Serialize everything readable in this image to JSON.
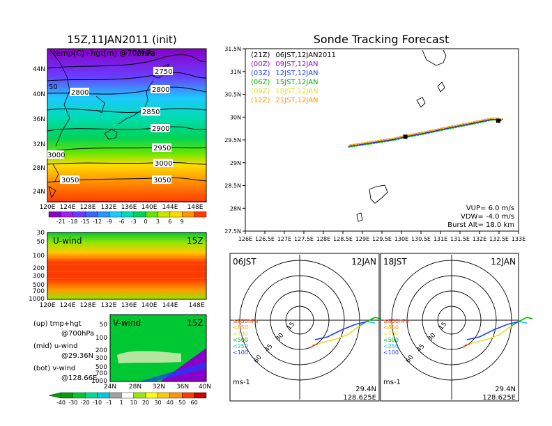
{
  "left_title": "15Z,11JAN2011 (init)",
  "right_title": "Sonde Tracking Forecast",
  "map_left": {
    "label": "temp(C)+hgt(m) @700hPa",
    "lon_ticks": [
      "120E",
      "124E",
      "128E",
      "132E",
      "136E",
      "140E",
      "144E",
      "148E"
    ],
    "lat_ticks": [
      "24N",
      "28N",
      "32N",
      "36N",
      "40N",
      "44N"
    ],
    "contour_labels": [
      "2750",
      "2800",
      "2800",
      "2850",
      "2900",
      "2950",
      "3000",
      "3000",
      "3050",
      "3050",
      "2700",
      "50"
    ],
    "colorbar_ticks": [
      "-21",
      "-18",
      "-15",
      "-12",
      "-9",
      "-6",
      "-3",
      "0",
      "3",
      "6",
      "9"
    ],
    "colorbar_colors": [
      "#8a00c8",
      "#a020f0",
      "#6a3cff",
      "#3c64ff",
      "#2a96ff",
      "#1ec8ff",
      "#00dcb4",
      "#00d25a",
      "#64e600",
      "#c8e600",
      "#ffdc00",
      "#ff9600",
      "#ff3c00"
    ]
  },
  "uwind": {
    "label": "U-wind",
    "time": "15Z",
    "levels": [
      "30",
      "50",
      "100",
      "200",
      "300",
      "500",
      "700",
      "1000"
    ],
    "lon_ticks": [
      "120E",
      "124E",
      "128E",
      "132E",
      "136E",
      "140E",
      "144E",
      "148E"
    ]
  },
  "vwind": {
    "label": "V-wind",
    "time": "15Z",
    "levels": [
      "50",
      "100",
      "200",
      "300",
      "500",
      "700",
      "1000"
    ],
    "lat_ticks": [
      "24N",
      "28N",
      "32N",
      "36N",
      "40N"
    ]
  },
  "side_notes": [
    {
      "line1": "(up) tmp+hgt",
      "line2": "@700hPa"
    },
    {
      "line1": "(mid) u-wind",
      "line2": "@29.36N"
    },
    {
      "line1": "(bot) v-wind",
      "line2": "@128.66E"
    }
  ],
  "wind_colorbar": {
    "ticks": [
      "-40",
      "-30",
      "-20",
      "-10",
      "-1",
      "1",
      "10",
      "20",
      "30",
      "40",
      "50",
      "60"
    ],
    "colors": [
      "#00a000",
      "#00c832",
      "#00dc96",
      "#00c8dc",
      "#a0a0a0",
      "#ffffff",
      "#96e600",
      "#ffff00",
      "#ffc800",
      "#ff9600",
      "#ff3c00",
      "#c80000"
    ]
  },
  "track_legend": [
    {
      "tag": "(21Z)",
      "text": "06JST,12JAN2011",
      "color": "#000000"
    },
    {
      "tag": "(00Z)",
      "text": "09JST,12JAN",
      "color": "#a000c8"
    },
    {
      "tag": "(03Z)",
      "text": "12JST,12JAN",
      "color": "#1e3cff"
    },
    {
      "tag": "(06Z)",
      "text": "15JST,12JAN",
      "color": "#00b400"
    },
    {
      "tag": "(09Z)",
      "text": "18JST,12JAN",
      "color": "#e6dc32"
    },
    {
      "tag": "(12Z)",
      "text": "21JST,12JAN",
      "color": "#ff9600"
    }
  ],
  "track_params": {
    "vup": "VUP= 6.0 m/s",
    "vdw": "VDW= -4.0 m/s",
    "burst": "Burst Alt= 18.0 km"
  },
  "hodo_left": {
    "time": "06JST",
    "date": "12JAN",
    "lat": "29.4N",
    "lon": "128.625E",
    "unit": "ms-1"
  },
  "hodo_right": {
    "time": "18JST",
    "date": "12JAN",
    "lat": "29.4N",
    "lon": "128.625E",
    "unit": "ms-1"
  },
  "hodo_rings": [
    "15",
    "30",
    "45",
    "60"
  ],
  "hodo_legend": [
    {
      "text": "≥850hPa",
      "color": "#ff3c00"
    },
    {
      "text": "<850",
      "color": "#ff9600"
    },
    {
      "text": "<700",
      "color": "#e6dc32"
    },
    {
      "text": "<500",
      "color": "#00b400"
    },
    {
      "text": "<250",
      "color": "#00c8dc"
    },
    {
      "text": "<100",
      "color": "#1e3cff"
    }
  ],
  "chart_data": {
    "type": "line",
    "title": "Sonde Tracking Forecast",
    "xlim": [
      126,
      133
    ],
    "ylim": [
      27.5,
      31.5
    ],
    "x_ticks": [
      "126E",
      "126.5E",
      "127E",
      "127.5E",
      "128E",
      "128.5E",
      "129E",
      "129.5E",
      "130E",
      "130.5E",
      "131E",
      "131.5E",
      "132E",
      "132.5E",
      "133E"
    ],
    "y_ticks": [
      "27.5N",
      "28N",
      "28.5N",
      "29N",
      "29.5N",
      "30N",
      "30.5N",
      "31N",
      "31.5N"
    ],
    "series": [
      {
        "name": "06JST,12JAN2011",
        "color": "#000000",
        "points": [
          [
            128.65,
            29.36
          ],
          [
            129.2,
            29.43
          ],
          [
            129.8,
            29.51
          ],
          [
            130.1,
            29.57
          ],
          [
            130.6,
            29.65
          ],
          [
            131.2,
            29.76
          ],
          [
            131.8,
            29.86
          ],
          [
            132.3,
            29.95
          ],
          [
            132.55,
            29.93
          ],
          [
            132.5,
            29.9
          ]
        ]
      },
      {
        "name": "09JST,12JAN",
        "color": "#a000c8",
        "points": [
          [
            128.65,
            29.37
          ],
          [
            129.2,
            29.44
          ],
          [
            129.8,
            29.52
          ],
          [
            130.1,
            29.58
          ],
          [
            130.6,
            29.66
          ],
          [
            131.2,
            29.77
          ],
          [
            131.8,
            29.87
          ],
          [
            132.3,
            29.96
          ],
          [
            132.55,
            29.94
          ]
        ]
      },
      {
        "name": "12JST,12JAN",
        "color": "#1e3cff",
        "points": [
          [
            128.64,
            29.35
          ],
          [
            129.2,
            29.42
          ],
          [
            129.8,
            29.5
          ],
          [
            130.1,
            29.56
          ],
          [
            130.6,
            29.64
          ],
          [
            131.2,
            29.75
          ],
          [
            131.8,
            29.85
          ],
          [
            132.3,
            29.94
          ],
          [
            132.6,
            29.95
          ]
        ]
      },
      {
        "name": "15JST,12JAN",
        "color": "#00b400",
        "points": [
          [
            128.63,
            29.34
          ],
          [
            129.2,
            29.41
          ],
          [
            129.8,
            29.49
          ],
          [
            130.1,
            29.55
          ],
          [
            130.6,
            29.63
          ],
          [
            131.2,
            29.74
          ],
          [
            131.8,
            29.84
          ],
          [
            132.3,
            29.93
          ],
          [
            132.6,
            29.96
          ]
        ]
      },
      {
        "name": "18JST,12JAN",
        "color": "#e6dc32",
        "points": [
          [
            128.66,
            29.38
          ],
          [
            129.2,
            29.45
          ],
          [
            129.8,
            29.53
          ],
          [
            130.1,
            29.59
          ],
          [
            130.6,
            29.67
          ],
          [
            131.2,
            29.78
          ],
          [
            131.8,
            29.88
          ],
          [
            132.3,
            29.97
          ],
          [
            132.55,
            29.97
          ]
        ]
      },
      {
        "name": "21JST,12JAN",
        "color": "#ff9600",
        "points": [
          [
            128.67,
            29.39
          ],
          [
            129.2,
            29.46
          ],
          [
            129.8,
            29.54
          ],
          [
            130.1,
            29.6
          ],
          [
            130.6,
            29.68
          ],
          [
            131.2,
            29.79
          ],
          [
            131.8,
            29.89
          ],
          [
            132.3,
            29.98
          ],
          [
            132.5,
            29.98
          ]
        ]
      }
    ],
    "markers": [
      [
        130.1,
        29.57
      ],
      [
        132.48,
        29.92
      ]
    ]
  }
}
